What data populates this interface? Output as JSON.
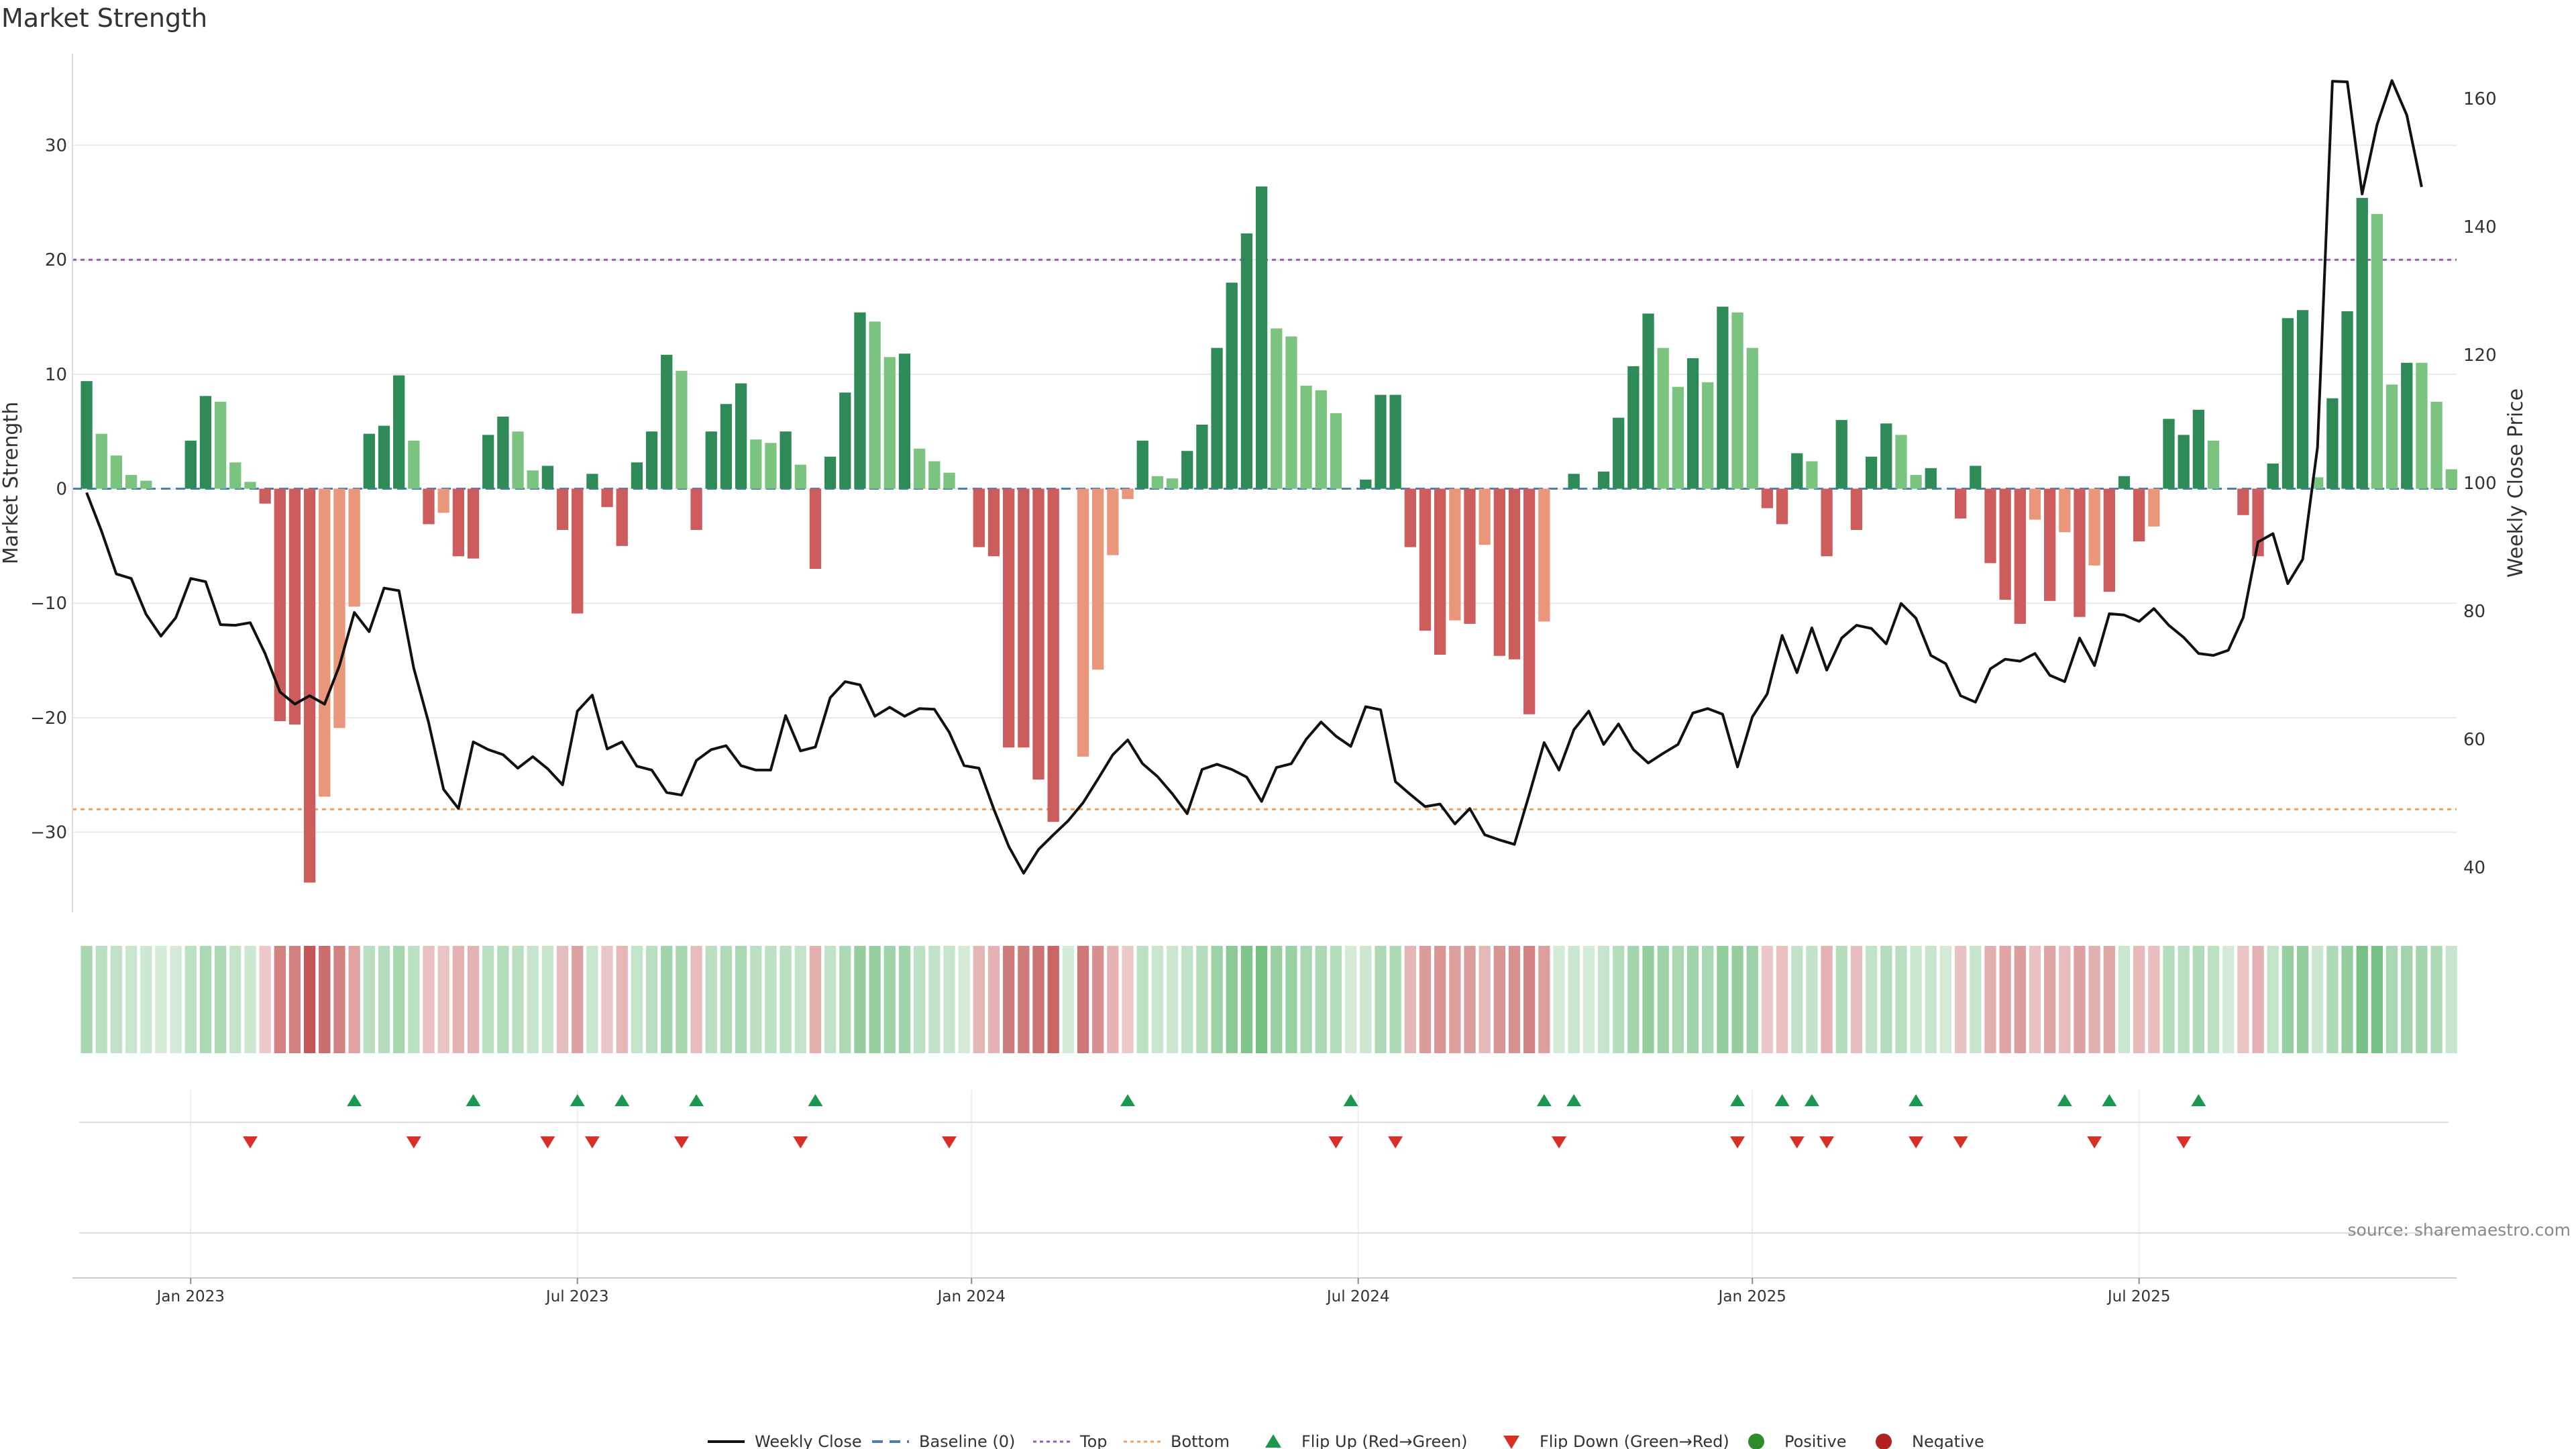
{
  "chart_data": {
    "type": "bar",
    "title": "Market Strength",
    "ylabel_left": "Market Strength",
    "ylabel_right": "Weekly Close Price",
    "ylim_left": [
      -37,
      38
    ],
    "ylim_right": [
      33,
      167
    ],
    "yticks_left": [
      30,
      20,
      10,
      0,
      -10,
      -20,
      -30
    ],
    "yticks_right": [
      160,
      140,
      120,
      100,
      80,
      60,
      40
    ],
    "xticks": [
      "Jan 2023",
      "Jul 2023",
      "Jan 2024",
      "Jul 2024",
      "Jan 2025",
      "Jul 2025"
    ],
    "xtick_positions": [
      7,
      33,
      59.5,
      85.5,
      112,
      138
    ],
    "top_level": 20,
    "bottom_level": -28,
    "bars": [
      {
        "v": 9.4,
        "c": "g"
      },
      {
        "v": 4.8,
        "c": "l"
      },
      {
        "v": 2.9,
        "c": "l"
      },
      {
        "v": 1.2,
        "c": "l"
      },
      {
        "v": 0.7,
        "c": "l"
      },
      {
        "v": 0,
        "c": "l"
      },
      {
        "v": 0,
        "c": "l"
      },
      {
        "v": 4.2,
        "c": "g"
      },
      {
        "v": 8.1,
        "c": "g"
      },
      {
        "v": 7.6,
        "c": "l"
      },
      {
        "v": 2.3,
        "c": "l"
      },
      {
        "v": 0.6,
        "c": "l"
      },
      {
        "v": -1.3,
        "c": "r"
      },
      {
        "v": -20.3,
        "c": "r"
      },
      {
        "v": -20.6,
        "c": "r"
      },
      {
        "v": -34.4,
        "c": "r"
      },
      {
        "v": -26.9,
        "c": "s"
      },
      {
        "v": -20.9,
        "c": "s"
      },
      {
        "v": -10.3,
        "c": "s"
      },
      {
        "v": 4.8,
        "c": "g"
      },
      {
        "v": 5.5,
        "c": "g"
      },
      {
        "v": 9.9,
        "c": "g"
      },
      {
        "v": 4.2,
        "c": "l"
      },
      {
        "v": -3.1,
        "c": "r"
      },
      {
        "v": -2.1,
        "c": "s"
      },
      {
        "v": -5.9,
        "c": "r"
      },
      {
        "v": -6.1,
        "c": "r"
      },
      {
        "v": 4.7,
        "c": "g"
      },
      {
        "v": 6.3,
        "c": "g"
      },
      {
        "v": 5,
        "c": "l"
      },
      {
        "v": 1.6,
        "c": "l"
      },
      {
        "v": 2,
        "c": "g"
      },
      {
        "v": -3.6,
        "c": "r"
      },
      {
        "v": -10.9,
        "c": "r"
      },
      {
        "v": 1.3,
        "c": "g"
      },
      {
        "v": -1.6,
        "c": "r"
      },
      {
        "v": -5,
        "c": "r"
      },
      {
        "v": 2.3,
        "c": "g"
      },
      {
        "v": 5,
        "c": "g"
      },
      {
        "v": 11.7,
        "c": "g"
      },
      {
        "v": 10.3,
        "c": "l"
      },
      {
        "v": -3.6,
        "c": "r"
      },
      {
        "v": 5,
        "c": "g"
      },
      {
        "v": 7.4,
        "c": "g"
      },
      {
        "v": 9.2,
        "c": "g"
      },
      {
        "v": 4.3,
        "c": "l"
      },
      {
        "v": 4,
        "c": "l"
      },
      {
        "v": 5,
        "c": "g"
      },
      {
        "v": 2.1,
        "c": "l"
      },
      {
        "v": -7,
        "c": "r"
      },
      {
        "v": 2.8,
        "c": "g"
      },
      {
        "v": 8.4,
        "c": "g"
      },
      {
        "v": 15.4,
        "c": "g"
      },
      {
        "v": 14.6,
        "c": "l"
      },
      {
        "v": 11.5,
        "c": "l"
      },
      {
        "v": 11.8,
        "c": "g"
      },
      {
        "v": 3.5,
        "c": "l"
      },
      {
        "v": 2.4,
        "c": "l"
      },
      {
        "v": 1.4,
        "c": "l"
      },
      {
        "v": 0,
        "c": "l"
      },
      {
        "v": -5.1,
        "c": "r"
      },
      {
        "v": -5.9,
        "c": "r"
      },
      {
        "v": -22.6,
        "c": "r"
      },
      {
        "v": -22.6,
        "c": "r"
      },
      {
        "v": -25.4,
        "c": "r"
      },
      {
        "v": -29.1,
        "c": "r"
      },
      {
        "v": 0,
        "c": "s"
      },
      {
        "v": -23.4,
        "c": "s"
      },
      {
        "v": -15.8,
        "c": "s"
      },
      {
        "v": -5.8,
        "c": "s"
      },
      {
        "v": -0.9,
        "c": "s"
      },
      {
        "v": 4.2,
        "c": "g"
      },
      {
        "v": 1.1,
        "c": "l"
      },
      {
        "v": 0.9,
        "c": "l"
      },
      {
        "v": 3.3,
        "c": "g"
      },
      {
        "v": 5.6,
        "c": "g"
      },
      {
        "v": 12.3,
        "c": "g"
      },
      {
        "v": 18,
        "c": "g"
      },
      {
        "v": 22.3,
        "c": "g"
      },
      {
        "v": 26.4,
        "c": "g"
      },
      {
        "v": 14,
        "c": "l"
      },
      {
        "v": 13.3,
        "c": "l"
      },
      {
        "v": 9,
        "c": "l"
      },
      {
        "v": 8.6,
        "c": "l"
      },
      {
        "v": 6.6,
        "c": "l"
      },
      {
        "v": 0,
        "c": "l"
      },
      {
        "v": 0.8,
        "c": "g"
      },
      {
        "v": 8.2,
        "c": "g"
      },
      {
        "v": 8.2,
        "c": "g"
      },
      {
        "v": -5.1,
        "c": "r"
      },
      {
        "v": -12.4,
        "c": "r"
      },
      {
        "v": -14.5,
        "c": "r"
      },
      {
        "v": -11.5,
        "c": "s"
      },
      {
        "v": -11.8,
        "c": "r"
      },
      {
        "v": -4.9,
        "c": "s"
      },
      {
        "v": -14.6,
        "c": "r"
      },
      {
        "v": -14.9,
        "c": "r"
      },
      {
        "v": -19.7,
        "c": "r"
      },
      {
        "v": -11.6,
        "c": "s"
      },
      {
        "v": 0,
        "c": "l"
      },
      {
        "v": 1.3,
        "c": "g"
      },
      {
        "v": 0,
        "c": "l"
      },
      {
        "v": 1.5,
        "c": "g"
      },
      {
        "v": 6.2,
        "c": "g"
      },
      {
        "v": 10.7,
        "c": "g"
      },
      {
        "v": 15.3,
        "c": "g"
      },
      {
        "v": 12.3,
        "c": "l"
      },
      {
        "v": 8.9,
        "c": "l"
      },
      {
        "v": 11.4,
        "c": "g"
      },
      {
        "v": 9.3,
        "c": "l"
      },
      {
        "v": 15.9,
        "c": "g"
      },
      {
        "v": 15.4,
        "c": "l"
      },
      {
        "v": 12.3,
        "c": "l"
      },
      {
        "v": -1.7,
        "c": "r"
      },
      {
        "v": -3.1,
        "c": "r"
      },
      {
        "v": 3.1,
        "c": "g"
      },
      {
        "v": 2.4,
        "c": "l"
      },
      {
        "v": -5.9,
        "c": "r"
      },
      {
        "v": 6,
        "c": "g"
      },
      {
        "v": -3.6,
        "c": "r"
      },
      {
        "v": 2.8,
        "c": "g"
      },
      {
        "v": 5.7,
        "c": "g"
      },
      {
        "v": 4.7,
        "c": "l"
      },
      {
        "v": 1.2,
        "c": "l"
      },
      {
        "v": 1.8,
        "c": "g"
      },
      {
        "v": 0,
        "c": "l"
      },
      {
        "v": -2.6,
        "c": "r"
      },
      {
        "v": 2,
        "c": "g"
      },
      {
        "v": -6.5,
        "c": "r"
      },
      {
        "v": -9.7,
        "c": "r"
      },
      {
        "v": -11.8,
        "c": "r"
      },
      {
        "v": -2.7,
        "c": "s"
      },
      {
        "v": -9.8,
        "c": "r"
      },
      {
        "v": -3.8,
        "c": "s"
      },
      {
        "v": -11.2,
        "c": "r"
      },
      {
        "v": -6.7,
        "c": "s"
      },
      {
        "v": -9,
        "c": "r"
      },
      {
        "v": 1.1,
        "c": "g"
      },
      {
        "v": -4.6,
        "c": "r"
      },
      {
        "v": -3.3,
        "c": "s"
      },
      {
        "v": 6.1,
        "c": "g"
      },
      {
        "v": 4.7,
        "c": "g"
      },
      {
        "v": 6.9,
        "c": "g"
      },
      {
        "v": 4.2,
        "c": "l"
      },
      {
        "v": 0,
        "c": "l"
      },
      {
        "v": -2.3,
        "c": "r"
      },
      {
        "v": -5.9,
        "c": "r"
      },
      {
        "v": 2.2,
        "c": "g"
      },
      {
        "v": 14.9,
        "c": "g"
      },
      {
        "v": 15.6,
        "c": "g"
      },
      {
        "v": 1,
        "c": "l"
      },
      {
        "v": 7.9,
        "c": "g"
      },
      {
        "v": 15.5,
        "c": "g"
      },
      {
        "v": 25.4,
        "c": "g"
      },
      {
        "v": 24,
        "c": "l"
      },
      {
        "v": 9.1,
        "c": "l"
      },
      {
        "v": 11,
        "c": "g"
      },
      {
        "v": 11,
        "c": "l"
      },
      {
        "v": 7.6,
        "c": "l"
      },
      {
        "v": 1.7,
        "c": "l"
      }
    ],
    "weekly_close": [
      98.5,
      92.5,
      85.8,
      85.1,
      79.5,
      76.1,
      79.0,
      85.1,
      84.6,
      77.9,
      77.8,
      78.2,
      73.4,
      67.4,
      65.5,
      66.8,
      65.5,
      71.5,
      79.8,
      76.8,
      83.6,
      83.2,
      71.1,
      62.6,
      52.2,
      49.2,
      59.6,
      58.4,
      57.6,
      55.5,
      57.3,
      55.4,
      52.9,
      64.4,
      66.9,
      58.5,
      59.6,
      55.8,
      55.2,
      51.7,
      51.3,
      56.7,
      58.4,
      59.0,
      55.9,
      55.2,
      55.2,
      63.7,
      58.2,
      58.8,
      66.5,
      69.0,
      68.5,
      63.6,
      65.0,
      63.6,
      64.8,
      64.7,
      61.1,
      55.9,
      55.5,
      49.1,
      43.3,
      39.1,
      42.8,
      45.1,
      47.3,
      50.1,
      53.8,
      57.6,
      59.9,
      56.2,
      54.2,
      51.5,
      48.4,
      55.3,
      56.1,
      55.3,
      54.1,
      50.3,
      55.6,
      56.2,
      60.0,
      62.7,
      60.5,
      58.9,
      65.1,
      64.6,
      53.4,
      51.4,
      49.5,
      49.9,
      46.8,
      49.2,
      45.1,
      44.3,
      43.6,
      51.4,
      59.5,
      55.2,
      61.5,
      64.4,
      59.2,
      62.4,
      58.4,
      56.3,
      57.8,
      59.2,
      64.1,
      64.8,
      63.9,
      55.7,
      63.5,
      67.1,
      76.2,
      70.4,
      77.4,
      70.8,
      75.8,
      77.8,
      77.3,
      74.9,
      81.2,
      78.9,
      73.1,
      71.8,
      66.8,
      65.8,
      71.0,
      72.5,
      72.2,
      73.4,
      70.0,
      69.0,
      75.8,
      71.5,
      79.6,
      79.4,
      78.4,
      80.4,
      77.8,
      75.9,
      73.4,
      73.1,
      73.9,
      79.0,
      90.8,
      92.1,
      84.3,
      88.1,
      105.6,
      162.7,
      162.6,
      145.1,
      155.9,
      162.8,
      157.4,
      146.2
    ],
    "flip_up_indices": [
      18,
      26,
      33,
      36,
      41,
      49,
      70,
      85,
      98,
      100,
      111,
      114,
      116,
      123,
      133,
      136,
      142
    ],
    "flip_down_indices": [
      11,
      22,
      31,
      34,
      40,
      48,
      58,
      84,
      88,
      99,
      111,
      115,
      117,
      123,
      126,
      135,
      141
    ],
    "legend": [
      {
        "key": "close",
        "label": "Weekly Close"
      },
      {
        "key": "baseline",
        "label": "Baseline (0)"
      },
      {
        "key": "top",
        "label": "Top"
      },
      {
        "key": "bottom",
        "label": "Bottom"
      },
      {
        "key": "flipup",
        "label": "Flip Up (Red→Green)"
      },
      {
        "key": "flipdown",
        "label": "Flip Down (Green→Red)"
      },
      {
        "key": "positive",
        "label": "Positive"
      },
      {
        "key": "negative",
        "label": "Negative"
      }
    ],
    "source": "source: sharemaestro.com",
    "colors": {
      "dark_green": "#2e8b57",
      "light_green": "#7bc47f",
      "dark_red": "#cd5c5c",
      "light_red": "#e9967a",
      "close_line": "#111111",
      "baseline": "#4a7fb5",
      "top": "#9b59b6",
      "bottom": "#f0a060",
      "flip_up": "#1a9850",
      "flip_down": "#d73027",
      "positive": "#2e8b2e",
      "negative": "#b22222",
      "grid": "#e8e8e8"
    }
  }
}
